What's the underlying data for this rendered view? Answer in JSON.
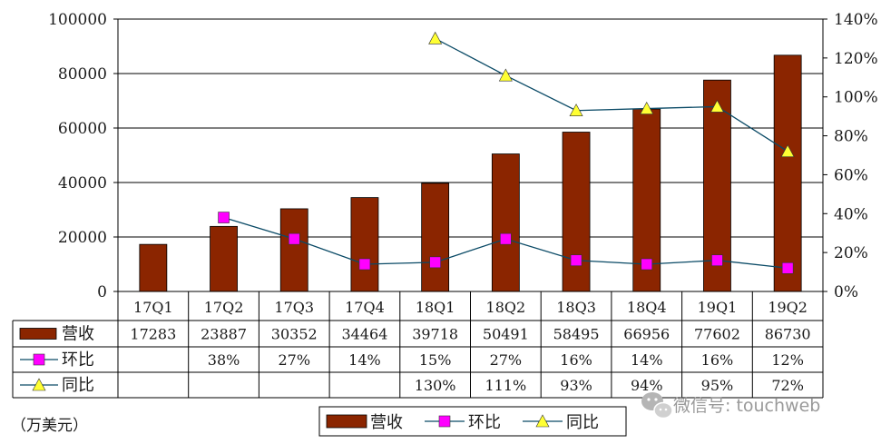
{
  "chart_data": {
    "type": "bar",
    "categories": [
      "17Q1",
      "17Q2",
      "17Q3",
      "17Q4",
      "18Q1",
      "18Q2",
      "18Q3",
      "18Q4",
      "19Q1",
      "19Q2"
    ],
    "series": [
      {
        "name": "营收",
        "type": "bar",
        "axis": "left",
        "values": [
          17283,
          23887,
          30352,
          34464,
          39718,
          50491,
          58495,
          66956,
          77602,
          86730
        ],
        "labels": [
          "17283",
          "23887",
          "30352",
          "34464",
          "39718",
          "50491",
          "58495",
          "66956",
          "77602",
          "86730"
        ],
        "color": "#8b2500"
      },
      {
        "name": "环比",
        "type": "line",
        "axis": "right",
        "marker": "square",
        "values": [
          null,
          38,
          27,
          14,
          15,
          27,
          16,
          14,
          16,
          12
        ],
        "labels": [
          "",
          "38%",
          "27%",
          "14%",
          "15%",
          "27%",
          "16%",
          "14%",
          "16%",
          "12%"
        ],
        "color": "#ff00ff"
      },
      {
        "name": "同比",
        "type": "line",
        "axis": "right",
        "marker": "triangle",
        "values": [
          null,
          null,
          null,
          null,
          130,
          111,
          93,
          94,
          95,
          72
        ],
        "labels": [
          "",
          "",
          "",
          "",
          "130%",
          "111%",
          "93%",
          "94%",
          "95%",
          "72%"
        ],
        "color": "#ffff33"
      }
    ],
    "y_left": {
      "min": 0,
      "max": 100000,
      "ticks": [
        "0",
        "20000",
        "40000",
        "60000",
        "80000",
        "100000"
      ]
    },
    "y_right": {
      "min": 0,
      "max": 140,
      "ticks": [
        "0%",
        "20%",
        "40%",
        "60%",
        "80%",
        "100%",
        "120%",
        "140%"
      ]
    },
    "unit_label": "（万美元）",
    "legend_position": "bottom",
    "grid": true
  },
  "watermark": {
    "text": "微信号: touchweb"
  }
}
